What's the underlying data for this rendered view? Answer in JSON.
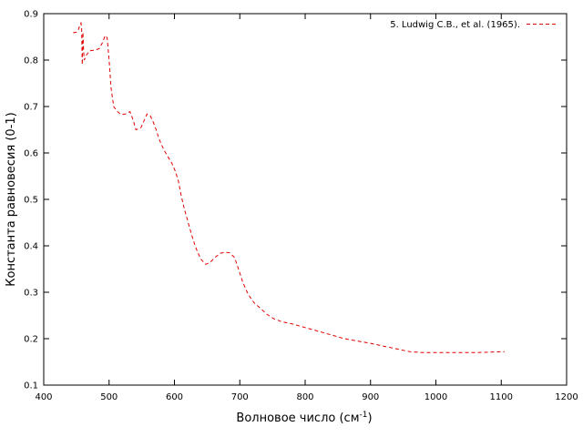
{
  "chart_data": {
    "type": "line",
    "xlabel": "Волновое число (см",
    "xlabel_sup": "-1",
    "xlabel_tail": ")",
    "ylabel": "Константа равновесия (0-1)",
    "xlim": [
      400,
      1200
    ],
    "ylim": [
      0.1,
      0.9
    ],
    "xticks": [
      400,
      500,
      600,
      700,
      800,
      900,
      1000,
      1100,
      1200
    ],
    "yticks": [
      0.1,
      0.2,
      0.3,
      0.4,
      0.5,
      0.6,
      0.7,
      0.8,
      0.9
    ],
    "xtick_labels": [
      "400",
      "500",
      "600",
      "700",
      "800",
      "900",
      "1000",
      "1100",
      "1200"
    ],
    "ytick_labels": [
      "0.1",
      "0.2",
      "0.3",
      "0.4",
      "0.5",
      "0.6",
      "0.7",
      "0.8",
      "0.9"
    ],
    "grid": false,
    "legend_position": "top-right",
    "series": [
      {
        "name": "5. Ludwig C.B., et al. (1965).",
        "color": "#e00000",
        "style": "dashed",
        "x": [
          445,
          450,
          453,
          455,
          457,
          458,
          459,
          460,
          461,
          462,
          465,
          470,
          480,
          485,
          490,
          494,
          497,
          500,
          503,
          507,
          512,
          518,
          525,
          532,
          537,
          541,
          545,
          549,
          553,
          558,
          563,
          568,
          572,
          576,
          580,
          585,
          590,
          596,
          601,
          606,
          610,
          615,
          620,
          626,
          632,
          640,
          648,
          655,
          663,
          670,
          677,
          684,
          692,
          698,
          705,
          713,
          722,
          732,
          742,
          752,
          765,
          780,
          800,
          820,
          840,
          860,
          880,
          900,
          920,
          940,
          960,
          980,
          1000,
          1020,
          1040,
          1060,
          1080,
          1105
        ],
        "y": [
          0.859,
          0.86,
          0.865,
          0.875,
          0.88,
          0.87,
          0.79,
          0.86,
          0.82,
          0.8,
          0.81,
          0.82,
          0.822,
          0.825,
          0.838,
          0.853,
          0.848,
          0.8,
          0.74,
          0.7,
          0.69,
          0.683,
          0.684,
          0.689,
          0.67,
          0.65,
          0.652,
          0.655,
          0.668,
          0.684,
          0.68,
          0.665,
          0.65,
          0.632,
          0.618,
          0.604,
          0.592,
          0.578,
          0.562,
          0.54,
          0.51,
          0.48,
          0.455,
          0.425,
          0.398,
          0.372,
          0.36,
          0.365,
          0.376,
          0.384,
          0.386,
          0.385,
          0.375,
          0.35,
          0.32,
          0.295,
          0.277,
          0.265,
          0.252,
          0.243,
          0.236,
          0.232,
          0.224,
          0.216,
          0.208,
          0.2,
          0.195,
          0.19,
          0.184,
          0.178,
          0.172,
          0.17,
          0.17,
          0.17,
          0.17,
          0.17,
          0.171,
          0.172
        ]
      }
    ]
  }
}
